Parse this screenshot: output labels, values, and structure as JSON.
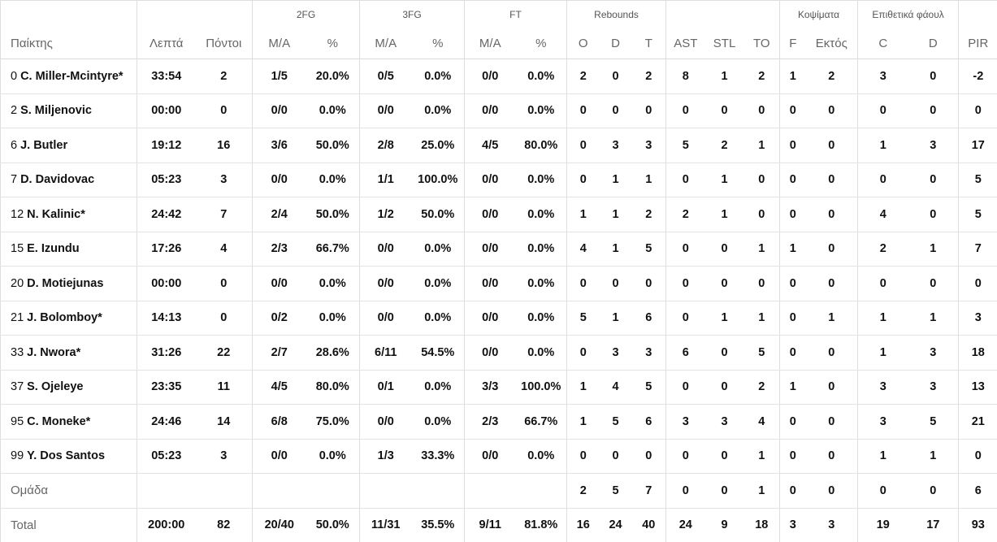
{
  "header": {
    "groups": {
      "twofg": "2FG",
      "threefg": "3FG",
      "ft": "FT",
      "rebounds": "Rebounds",
      "blocks": "Κοψίματα",
      "offensive_fouls": "Επιθετικά φάουλ"
    },
    "columns": {
      "player": "Παίκτης",
      "minutes": "Λεπτά",
      "points": "Πόντοι",
      "twofg_ma": "M/A",
      "twofg_pct": "%",
      "threefg_ma": "M/A",
      "threefg_pct": "%",
      "ft_ma": "M/A",
      "ft_pct": "%",
      "reb_o": "O",
      "reb_d": "D",
      "reb_t": "T",
      "ast": "AST",
      "stl": "STL",
      "to": "TO",
      "blk_f": "F",
      "blk_out": "Εκτός",
      "of_c": "C",
      "of_d": "D",
      "pir": "PIR"
    }
  },
  "rows": [
    {
      "num": "0",
      "name": "C. Miller-Mcintyre*",
      "min": "33:54",
      "pts": "2",
      "fg2": "1/5",
      "fg2p": "20.0%",
      "fg3": "0/5",
      "fg3p": "0.0%",
      "ft": "0/0",
      "ftp": "0.0%",
      "o": "2",
      "d": "0",
      "t": "2",
      "ast": "8",
      "stl": "1",
      "to": "2",
      "bf": "1",
      "bo": "2",
      "c": "3",
      "fd": "0",
      "pir": "-2"
    },
    {
      "num": "2",
      "name": "S. Miljenovic",
      "min": "00:00",
      "pts": "0",
      "fg2": "0/0",
      "fg2p": "0.0%",
      "fg3": "0/0",
      "fg3p": "0.0%",
      "ft": "0/0",
      "ftp": "0.0%",
      "o": "0",
      "d": "0",
      "t": "0",
      "ast": "0",
      "stl": "0",
      "to": "0",
      "bf": "0",
      "bo": "0",
      "c": "0",
      "fd": "0",
      "pir": "0"
    },
    {
      "num": "6",
      "name": "J. Butler",
      "min": "19:12",
      "pts": "16",
      "fg2": "3/6",
      "fg2p": "50.0%",
      "fg3": "2/8",
      "fg3p": "25.0%",
      "ft": "4/5",
      "ftp": "80.0%",
      "o": "0",
      "d": "3",
      "t": "3",
      "ast": "5",
      "stl": "2",
      "to": "1",
      "bf": "0",
      "bo": "0",
      "c": "1",
      "fd": "3",
      "pir": "17"
    },
    {
      "num": "7",
      "name": "D. Davidovac",
      "min": "05:23",
      "pts": "3",
      "fg2": "0/0",
      "fg2p": "0.0%",
      "fg3": "1/1",
      "fg3p": "100.0%",
      "ft": "0/0",
      "ftp": "0.0%",
      "o": "0",
      "d": "1",
      "t": "1",
      "ast": "0",
      "stl": "1",
      "to": "0",
      "bf": "0",
      "bo": "0",
      "c": "0",
      "fd": "0",
      "pir": "5"
    },
    {
      "num": "12",
      "name": "N. Kalinic*",
      "min": "24:42",
      "pts": "7",
      "fg2": "2/4",
      "fg2p": "50.0%",
      "fg3": "1/2",
      "fg3p": "50.0%",
      "ft": "0/0",
      "ftp": "0.0%",
      "o": "1",
      "d": "1",
      "t": "2",
      "ast": "2",
      "stl": "1",
      "to": "0",
      "bf": "0",
      "bo": "0",
      "c": "4",
      "fd": "0",
      "pir": "5"
    },
    {
      "num": "15",
      "name": "E. Izundu",
      "min": "17:26",
      "pts": "4",
      "fg2": "2/3",
      "fg2p": "66.7%",
      "fg3": "0/0",
      "fg3p": "0.0%",
      "ft": "0/0",
      "ftp": "0.0%",
      "o": "4",
      "d": "1",
      "t": "5",
      "ast": "0",
      "stl": "0",
      "to": "1",
      "bf": "1",
      "bo": "0",
      "c": "2",
      "fd": "1",
      "pir": "7"
    },
    {
      "num": "20",
      "name": "D. Motiejunas",
      "min": "00:00",
      "pts": "0",
      "fg2": "0/0",
      "fg2p": "0.0%",
      "fg3": "0/0",
      "fg3p": "0.0%",
      "ft": "0/0",
      "ftp": "0.0%",
      "o": "0",
      "d": "0",
      "t": "0",
      "ast": "0",
      "stl": "0",
      "to": "0",
      "bf": "0",
      "bo": "0",
      "c": "0",
      "fd": "0",
      "pir": "0"
    },
    {
      "num": "21",
      "name": "J. Bolomboy*",
      "min": "14:13",
      "pts": "0",
      "fg2": "0/2",
      "fg2p": "0.0%",
      "fg3": "0/0",
      "fg3p": "0.0%",
      "ft": "0/0",
      "ftp": "0.0%",
      "o": "5",
      "d": "1",
      "t": "6",
      "ast": "0",
      "stl": "1",
      "to": "1",
      "bf": "0",
      "bo": "1",
      "c": "1",
      "fd": "1",
      "pir": "3"
    },
    {
      "num": "33",
      "name": "J. Nwora*",
      "min": "31:26",
      "pts": "22",
      "fg2": "2/7",
      "fg2p": "28.6%",
      "fg3": "6/11",
      "fg3p": "54.5%",
      "ft": "0/0",
      "ftp": "0.0%",
      "o": "0",
      "d": "3",
      "t": "3",
      "ast": "6",
      "stl": "0",
      "to": "5",
      "bf": "0",
      "bo": "0",
      "c": "1",
      "fd": "3",
      "pir": "18"
    },
    {
      "num": "37",
      "name": "S. Ojeleye",
      "min": "23:35",
      "pts": "11",
      "fg2": "4/5",
      "fg2p": "80.0%",
      "fg3": "0/1",
      "fg3p": "0.0%",
      "ft": "3/3",
      "ftp": "100.0%",
      "o": "1",
      "d": "4",
      "t": "5",
      "ast": "0",
      "stl": "0",
      "to": "2",
      "bf": "1",
      "bo": "0",
      "c": "3",
      "fd": "3",
      "pir": "13"
    },
    {
      "num": "95",
      "name": "C. Moneke*",
      "min": "24:46",
      "pts": "14",
      "fg2": "6/8",
      "fg2p": "75.0%",
      "fg3": "0/0",
      "fg3p": "0.0%",
      "ft": "2/3",
      "ftp": "66.7%",
      "o": "1",
      "d": "5",
      "t": "6",
      "ast": "3",
      "stl": "3",
      "to": "4",
      "bf": "0",
      "bo": "0",
      "c": "3",
      "fd": "5",
      "pir": "21"
    },
    {
      "num": "99",
      "name": "Y. Dos Santos",
      "min": "05:23",
      "pts": "3",
      "fg2": "0/0",
      "fg2p": "0.0%",
      "fg3": "1/3",
      "fg3p": "33.3%",
      "ft": "0/0",
      "ftp": "0.0%",
      "o": "0",
      "d": "0",
      "t": "0",
      "ast": "0",
      "stl": "0",
      "to": "1",
      "bf": "0",
      "bo": "0",
      "c": "1",
      "fd": "1",
      "pir": "0"
    }
  ],
  "team": {
    "label": "Ομάδα",
    "o": "2",
    "d": "5",
    "t": "7",
    "ast": "0",
    "stl": "0",
    "to": "1",
    "bf": "0",
    "bo": "0",
    "c": "0",
    "fd": "0",
    "pir": "6"
  },
  "total": {
    "label": "Total",
    "min": "200:00",
    "pts": "82",
    "fg2": "20/40",
    "fg2p": "50.0%",
    "fg3": "11/31",
    "fg3p": "35.5%",
    "ft": "9/11",
    "ftp": "81.8%",
    "o": "16",
    "d": "24",
    "t": "40",
    "ast": "24",
    "stl": "9",
    "to": "18",
    "bf": "3",
    "bo": "3",
    "c": "19",
    "fd": "17",
    "pir": "93"
  }
}
